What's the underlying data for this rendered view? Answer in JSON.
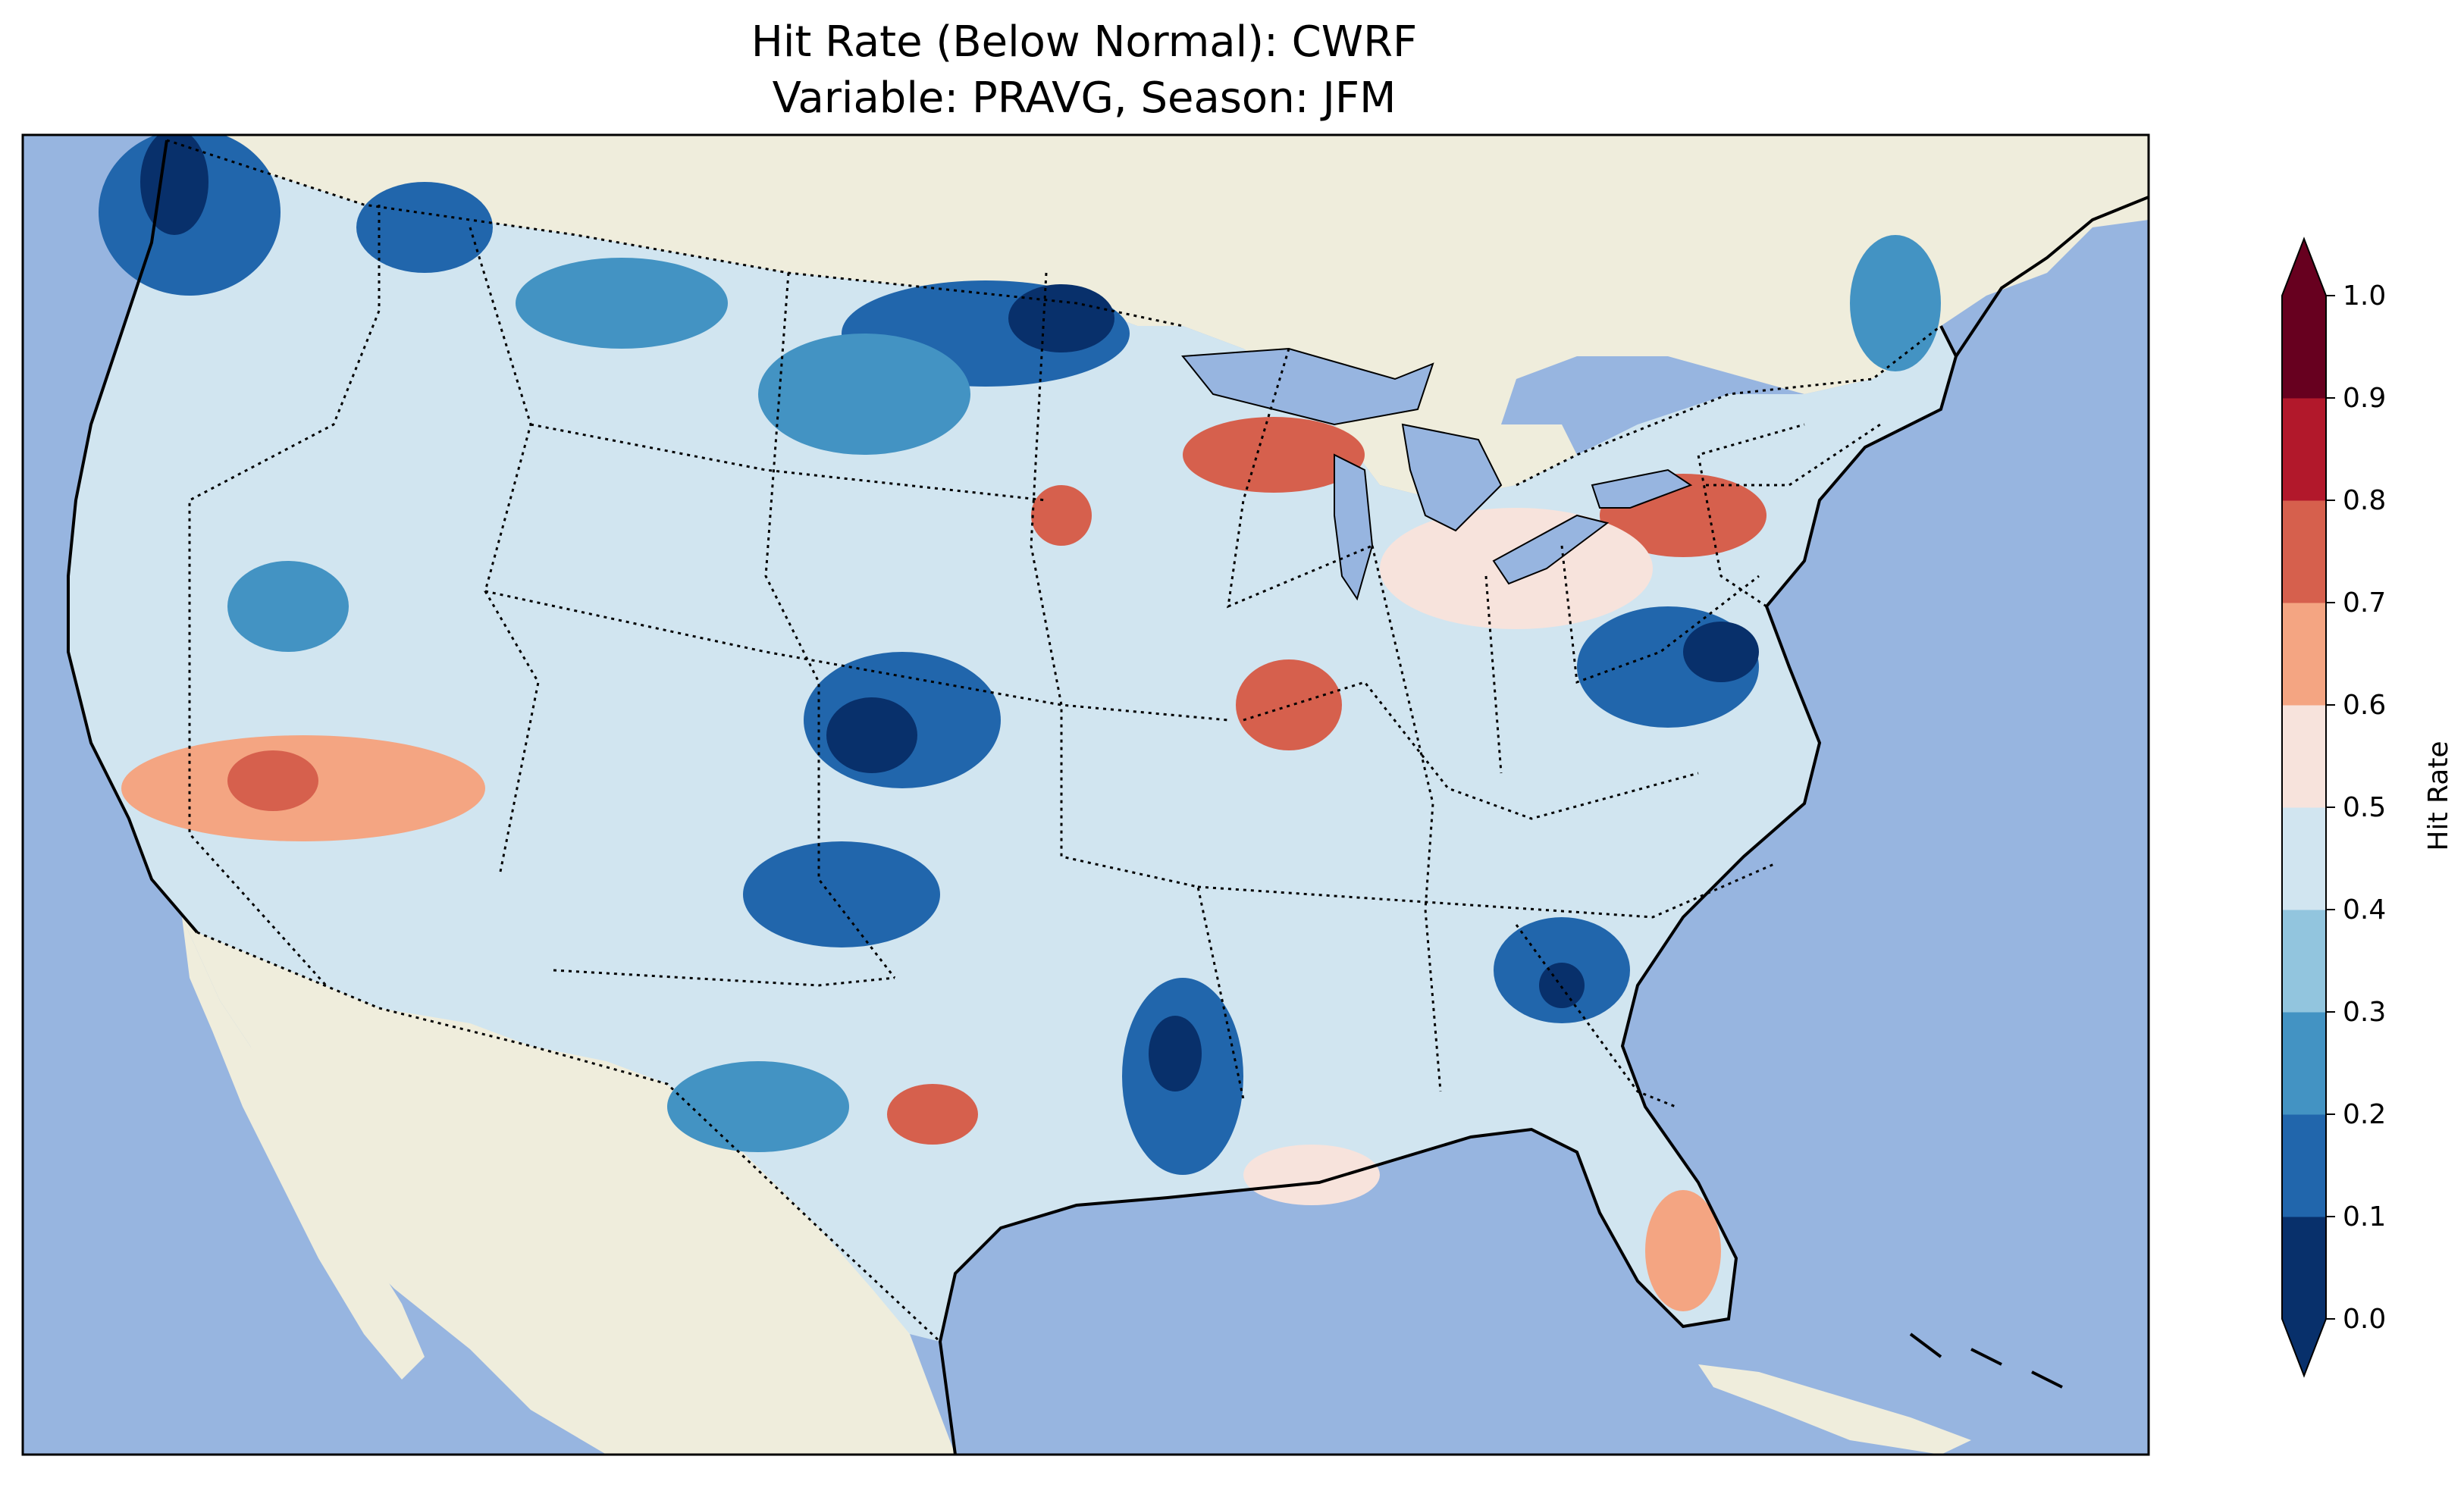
{
  "figure": {
    "title_line1": "Hit Rate (Below Normal): CWRF",
    "title_line2": "Variable: PRAVG, Season: JFM"
  },
  "map": {
    "region": "Contiguous United States",
    "ocean_color": "#97b5e0",
    "land_color": "#efeddc",
    "features": [
      "coastline",
      "state-borders",
      "country-borders",
      "lakes"
    ]
  },
  "colorbar": {
    "label": "Hit Rate",
    "extend": "both",
    "min": 0.0,
    "max": 1.0,
    "ticks": [
      "0.0",
      "0.1",
      "0.2",
      "0.3",
      "0.4",
      "0.5",
      "0.6",
      "0.7",
      "0.8",
      "0.9",
      "1.0"
    ],
    "colors": [
      "#08306b",
      "#2166ac",
      "#4393c3",
      "#92c5de",
      "#d1e5f0",
      "#f7e3dc",
      "#f4a582",
      "#d6604d",
      "#b2182b",
      "#67001f"
    ],
    "under_color": "#08306b",
    "over_color": "#67001f"
  },
  "chart_data": {
    "type": "heatmap",
    "title": "Hit Rate (Below Normal): CWRF\nVariable: PRAVG, Season: JFM",
    "colorbar_label": "Hit Rate",
    "value_range": [
      0.0,
      1.0
    ],
    "regions": [
      {
        "region": "Pacific Northwest coast",
        "hit_rate": 0.05
      },
      {
        "region": "Northern Idaho / Montana border",
        "hit_rate": 0.15
      },
      {
        "region": "North Dakota / Minnesota border",
        "hit_rate": 0.1
      },
      {
        "region": "Southern California / Arizona",
        "hit_rate": 0.72
      },
      {
        "region": "Northern Nevada",
        "hit_rate": 0.25
      },
      {
        "region": "Southwestern Kansas",
        "hit_rate": 0.05
      },
      {
        "region": "Central Texas",
        "hit_rate": 0.35
      },
      {
        "region": "West Texas",
        "hit_rate": 0.72
      },
      {
        "region": "Lower Mississippi Valley",
        "hit_rate": 0.15
      },
      {
        "region": "Central Illinois",
        "hit_rate": 0.72
      },
      {
        "region": "Northern Michigan",
        "hit_rate": 0.75
      },
      {
        "region": "Southeastern South Dakota",
        "hit_rate": 0.72
      },
      {
        "region": "Virginia / Maryland",
        "hit_rate": 0.05
      },
      {
        "region": "Georgia",
        "hit_rate": 0.1
      },
      {
        "region": "New York / New England",
        "hit_rate": 0.72
      },
      {
        "region": "Maine",
        "hit_rate": 0.25
      },
      {
        "region": "Florida peninsula",
        "hit_rate": 0.65
      },
      {
        "region": "Gulf coast of Louisiana",
        "hit_rate": 0.6
      }
    ]
  }
}
